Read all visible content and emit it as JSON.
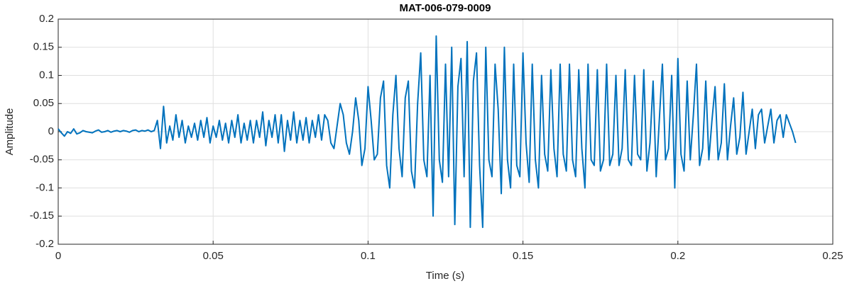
{
  "chart_data": {
    "type": "line",
    "title": "MAT-006-079-0009",
    "x_label": "Time (s)",
    "y_label": "Amplitude",
    "color": "#0072bd",
    "grid": true,
    "xlim": [
      0,
      0.25
    ],
    "xticks": [
      0,
      0.05,
      0.1,
      0.15,
      0.2,
      0.25
    ],
    "ylim": [
      -0.2,
      0.2
    ],
    "yticks": [
      -0.2,
      -0.15,
      -0.1,
      -0.05,
      0,
      0.05,
      0.1,
      0.15,
      0.2
    ],
    "x": [
      0,
      0.001,
      0.002,
      0.003,
      0.004,
      0.005,
      0.006,
      0.007,
      0.008,
      0.009,
      0.01,
      0.011,
      0.012,
      0.013,
      0.014,
      0.015,
      0.016,
      0.017,
      0.018,
      0.019,
      0.02,
      0.021,
      0.022,
      0.023,
      0.024,
      0.025,
      0.026,
      0.027,
      0.028,
      0.029,
      0.03,
      0.031,
      0.032,
      0.033,
      0.034,
      0.035,
      0.036,
      0.037,
      0.038,
      0.039,
      0.04,
      0.041,
      0.042,
      0.043,
      0.044,
      0.045,
      0.046,
      0.047,
      0.048,
      0.049,
      0.05,
      0.051,
      0.052,
      0.053,
      0.054,
      0.055,
      0.056,
      0.057,
      0.058,
      0.059,
      0.06,
      0.061,
      0.062,
      0.063,
      0.064,
      0.065,
      0.066,
      0.067,
      0.068,
      0.069,
      0.07,
      0.071,
      0.072,
      0.073,
      0.074,
      0.075,
      0.076,
      0.077,
      0.078,
      0.079,
      0.08,
      0.081,
      0.082,
      0.083,
      0.084,
      0.085,
      0.086,
      0.087,
      0.088,
      0.089,
      0.09,
      0.091,
      0.092,
      0.093,
      0.094,
      0.095,
      0.096,
      0.097,
      0.098,
      0.099,
      0.1,
      0.101,
      0.102,
      0.103,
      0.104,
      0.105,
      0.106,
      0.107,
      0.108,
      0.109,
      0.11,
      0.111,
      0.112,
      0.113,
      0.114,
      0.115,
      0.116,
      0.117,
      0.118,
      0.119,
      0.12,
      0.121,
      0.122,
      0.123,
      0.124,
      0.125,
      0.126,
      0.127,
      0.128,
      0.129,
      0.13,
      0.131,
      0.132,
      0.133,
      0.134,
      0.135,
      0.136,
      0.137,
      0.138,
      0.139,
      0.14,
      0.141,
      0.142,
      0.143,
      0.144,
      0.145,
      0.146,
      0.147,
      0.148,
      0.149,
      0.15,
      0.151,
      0.152,
      0.153,
      0.154,
      0.155,
      0.156,
      0.157,
      0.158,
      0.159,
      0.16,
      0.161,
      0.162,
      0.163,
      0.164,
      0.165,
      0.166,
      0.167,
      0.168,
      0.169,
      0.17,
      0.171,
      0.172,
      0.173,
      0.174,
      0.175,
      0.176,
      0.177,
      0.178,
      0.179,
      0.18,
      0.181,
      0.182,
      0.183,
      0.184,
      0.185,
      0.186,
      0.187,
      0.188,
      0.189,
      0.19,
      0.191,
      0.192,
      0.193,
      0.194,
      0.195,
      0.196,
      0.197,
      0.198,
      0.199,
      0.2,
      0.201,
      0.202,
      0.203,
      0.204,
      0.205,
      0.206,
      0.207,
      0.208,
      0.209,
      0.21,
      0.211,
      0.212,
      0.213,
      0.214,
      0.215,
      0.216,
      0.217,
      0.218,
      0.219,
      0.22,
      0.221,
      0.222,
      0.223,
      0.224,
      0.225,
      0.226,
      0.227,
      0.228,
      0.229,
      0.23,
      0.231,
      0.232,
      0.233,
      0.234,
      0.235,
      0.236,
      0.237,
      0.238
    ],
    "values": [
      0.005,
      -0.002,
      -0.008,
      0,
      -0.003,
      0.005,
      -0.004,
      -0.002,
      0.002,
      0,
      -0.001,
      -0.002,
      0.001,
      0.003,
      -0.001,
      0,
      0.002,
      -0.001,
      0.001,
      0.002,
      0,
      0.002,
      0.001,
      -0.001,
      0.002,
      0.003,
      0,
      0.002,
      0.001,
      0.003,
      0,
      0.002,
      0.02,
      -0.03,
      0.045,
      -0.02,
      0.01,
      -0.015,
      0.03,
      -0.01,
      0.02,
      -0.02,
      0.01,
      -0.01,
      0.015,
      -0.015,
      0.02,
      -0.01,
      0.025,
      -0.02,
      0.01,
      -0.01,
      0.02,
      -0.015,
      0.015,
      -0.02,
      0.02,
      -0.01,
      0.03,
      -0.02,
      0.015,
      -0.015,
      0.02,
      -0.02,
      0.02,
      -0.01,
      0.035,
      -0.025,
      0.02,
      -0.01,
      0.03,
      -0.02,
      0.03,
      -0.035,
      0.02,
      -0.015,
      0.035,
      -0.02,
      0.02,
      -0.015,
      0.025,
      -0.02,
      0.02,
      -0.01,
      0.03,
      -0.015,
      0.03,
      0.02,
      -0.02,
      -0.03,
      0.01,
      0.05,
      0.03,
      -0.02,
      -0.04,
      0,
      0.06,
      0.02,
      -0.06,
      -0.03,
      0.08,
      0.02,
      -0.05,
      -0.04,
      0.06,
      0.09,
      -0.06,
      -0.1,
      0.03,
      0.1,
      -0.03,
      -0.08,
      0.06,
      0.09,
      -0.07,
      -0.1,
      0.05,
      0.14,
      -0.05,
      -0.08,
      0.1,
      -0.15,
      0.17,
      -0.05,
      -0.09,
      0.12,
      -0.08,
      0.15,
      -0.165,
      0.08,
      0.13,
      -0.08,
      0.16,
      -0.17,
      0.09,
      0.14,
      -0.06,
      -0.17,
      0.15,
      -0.05,
      -0.08,
      0.12,
      0.04,
      -0.11,
      0.15,
      -0.05,
      -0.1,
      0.12,
      -0.06,
      -0.08,
      0.14,
      -0.02,
      -0.09,
      0.12,
      -0.05,
      -0.1,
      0.1,
      -0.04,
      -0.07,
      0.11,
      -0.03,
      -0.08,
      0.12,
      -0.04,
      -0.07,
      0.12,
      -0.05,
      -0.08,
      0.11,
      -0.03,
      -0.1,
      0.12,
      -0.05,
      -0.06,
      0.11,
      -0.07,
      -0.05,
      0.12,
      -0.06,
      -0.04,
      0.1,
      -0.06,
      -0.03,
      0.11,
      -0.05,
      -0.06,
      0.1,
      -0.04,
      -0.05,
      0.11,
      -0.07,
      -0.02,
      0.09,
      -0.08,
      0.02,
      0.12,
      -0.05,
      -0.03,
      0.1,
      -0.1,
      0.13,
      -0.04,
      -0.07,
      0.09,
      -0.05,
      0.03,
      0.12,
      -0.06,
      -0.03,
      0.09,
      -0.05,
      0.02,
      0.08,
      -0.05,
      -0.02,
      0.085,
      -0.05,
      0.01,
      0.06,
      -0.04,
      -0.01,
      0.07,
      -0.04,
      0,
      0.04,
      -0.03,
      0.03,
      0.04,
      -0.02,
      0.01,
      0.04,
      -0.02,
      0.02,
      0.03,
      -0.01,
      0.03,
      0.015,
      0,
      -0.02
    ]
  }
}
